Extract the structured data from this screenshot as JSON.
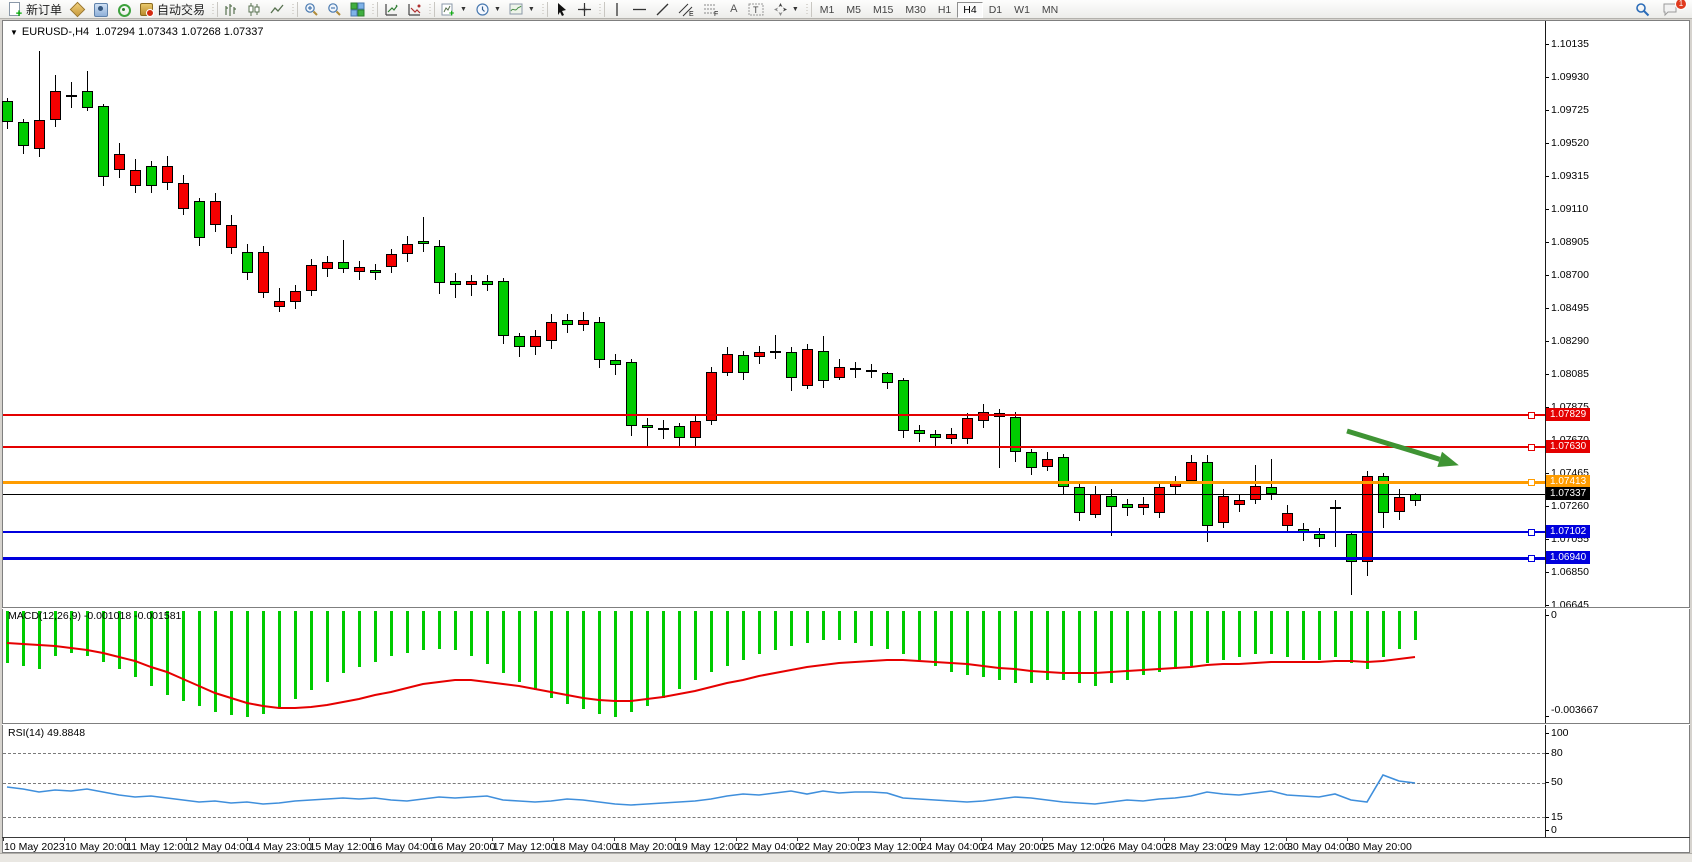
{
  "toolbar": {
    "new_order_label": "新订单",
    "autotrade_label": "自动交易",
    "timeframes": [
      "M1",
      "M5",
      "M15",
      "M30",
      "H1",
      "H4",
      "D1",
      "W1",
      "MN"
    ],
    "active_timeframe": "H4",
    "chat_badge": "1"
  },
  "header": {
    "symbol_timeframe": "EURUSD-,H4",
    "open": "1.07294",
    "high": "1.07343",
    "low": "1.07268",
    "close": "1.07337"
  },
  "chart_data": {
    "type": "candlestick",
    "symbol": "EURUSD-",
    "timeframe": "H4",
    "grid": false,
    "colors": {
      "bull": "#00cb00",
      "bear": "#f50000",
      "outline": "#000000",
      "macd_hist": "#00cb00",
      "macd_signal": "#e60000",
      "rsi_line": "#3f8fdc",
      "arrow": "#3f9434"
    },
    "price_axis_labels": [
      "1.10135",
      "1.09930",
      "1.09725",
      "1.09520",
      "1.09315",
      "1.09110",
      "1.08905",
      "1.08700",
      "1.08495",
      "1.08290",
      "1.08085",
      "1.07875",
      "1.07670",
      "1.07465",
      "1.07260",
      "1.07055",
      "1.06850",
      "1.06645"
    ],
    "time_axis_labels": [
      "10 May 2023",
      "10 May 20:00",
      "11 May 12:00",
      "12 May 04:00",
      "14 May 23:00",
      "15 May 12:00",
      "16 May 04:00",
      "16 May 20:00",
      "17 May 12:00",
      "18 May 04:00",
      "18 May 20:00",
      "19 May 12:00",
      "22 May 04:00",
      "22 May 20:00",
      "23 May 12:00",
      "24 May 04:00",
      "24 May 20:00",
      "25 May 12:00",
      "26 May 04:00",
      "28 May 23:00",
      "29 May 12:00",
      "30 May 04:00",
      "30 May 20:00"
    ],
    "hlines": [
      {
        "price": 1.07829,
        "label": "1.07829",
        "color": "#e40000",
        "width": 2,
        "handle": true
      },
      {
        "price": 1.0763,
        "label": "1.07630",
        "color": "#e40000",
        "width": 2,
        "handle": true
      },
      {
        "price": 1.07413,
        "label": "1.07413",
        "color": "#ff9c00",
        "width": 3,
        "handle": true
      },
      {
        "price": 1.07337,
        "label": "1.07337",
        "color": "#000000",
        "width": 1,
        "handle": false
      },
      {
        "price": 1.07102,
        "label": "1.07102",
        "color": "#0000dd",
        "width": 2,
        "handle": true
      },
      {
        "price": 1.0694,
        "label": "1.06940",
        "color": "#0000dd",
        "width": 3,
        "handle": true
      }
    ],
    "arrow_annotation": {
      "from": [
        1347,
        431
      ],
      "to": [
        1455,
        464
      ]
    },
    "candles": [
      [
        1.0965,
        1.098,
        1.0961,
        1.0978
      ],
      [
        1.095,
        1.0967,
        1.0945,
        1.0965
      ],
      [
        1.0966,
        1.1009,
        1.0943,
        1.0948
      ],
      [
        1.0984,
        1.0994,
        1.0962,
        1.0966
      ],
      [
        1.0981,
        1.099,
        1.0974,
        1.0982
      ],
      [
        1.0974,
        1.0997,
        1.0972,
        1.0984
      ],
      [
        1.0931,
        1.0976,
        1.0925,
        1.0975
      ],
      [
        1.0945,
        1.0952,
        1.093,
        1.0935
      ],
      [
        1.0935,
        1.0942,
        1.0921,
        1.0925
      ],
      [
        1.0925,
        1.0941,
        1.0921,
        1.0938
      ],
      [
        1.0938,
        1.0944,
        1.0923,
        1.0927
      ],
      [
        1.0927,
        1.0932,
        1.0907,
        1.0911
      ],
      [
        1.0893,
        1.0918,
        1.0888,
        1.0916
      ],
      [
        1.0916,
        1.0921,
        1.0897,
        1.0901
      ],
      [
        1.0901,
        1.0907,
        1.0883,
        1.0887
      ],
      [
        1.0871,
        1.0889,
        1.0867,
        1.0884
      ],
      [
        1.0884,
        1.0888,
        1.0856,
        1.0859
      ],
      [
        1.0854,
        1.0862,
        1.0847,
        1.085
      ],
      [
        1.086,
        1.0864,
        1.0849,
        1.0853
      ],
      [
        1.0876,
        1.088,
        1.0857,
        1.086
      ],
      [
        1.0878,
        1.0882,
        1.0869,
        1.0874
      ],
      [
        1.0874,
        1.0892,
        1.0871,
        1.0878
      ],
      [
        1.0875,
        1.0879,
        1.0867,
        1.0872
      ],
      [
        1.0871,
        1.0877,
        1.0867,
        1.0873
      ],
      [
        1.0883,
        1.0886,
        1.0871,
        1.0875
      ],
      [
        1.0889,
        1.0894,
        1.0878,
        1.0883
      ],
      [
        1.0889,
        1.0906,
        1.0884,
        1.0891
      ],
      [
        1.0865,
        1.0892,
        1.0858,
        1.0888
      ],
      [
        1.0864,
        1.0871,
        1.0856,
        1.0866
      ],
      [
        1.0866,
        1.087,
        1.0857,
        1.0864
      ],
      [
        1.0864,
        1.087,
        1.086,
        1.0866
      ],
      [
        1.0832,
        1.0868,
        1.0827,
        1.0866
      ],
      [
        1.0825,
        1.0834,
        1.0819,
        1.0832
      ],
      [
        1.0832,
        1.0836,
        1.082,
        1.0825
      ],
      [
        1.0841,
        1.0846,
        1.0824,
        1.0829
      ],
      [
        1.0839,
        1.0846,
        1.0834,
        1.0842
      ],
      [
        1.0842,
        1.0847,
        1.0835,
        1.0839
      ],
      [
        1.0817,
        1.0844,
        1.0812,
        1.0841
      ],
      [
        1.0814,
        1.0821,
        1.0808,
        1.0817
      ],
      [
        1.0776,
        1.0818,
        1.077,
        1.0816
      ],
      [
        1.0775,
        1.0781,
        1.0764,
        1.0777
      ],
      [
        1.0774,
        1.078,
        1.0768,
        1.0775
      ],
      [
        1.0769,
        1.0778,
        1.0764,
        1.0776
      ],
      [
        1.0779,
        1.0783,
        1.0763,
        1.0769
      ],
      [
        1.081,
        1.0813,
        1.0777,
        1.0779
      ],
      [
        1.0821,
        1.0825,
        1.0807,
        1.0809
      ],
      [
        1.0809,
        1.0823,
        1.0805,
        1.082
      ],
      [
        1.0822,
        1.0826,
        1.0815,
        1.0819
      ],
      [
        1.0822,
        1.0833,
        1.0818,
        1.0823
      ],
      [
        1.0806,
        1.0825,
        1.0798,
        1.0822
      ],
      [
        1.0824,
        1.0827,
        1.0799,
        1.0801
      ],
      [
        1.0804,
        1.0832,
        1.08,
        1.0823
      ],
      [
        1.0813,
        1.0818,
        1.0805,
        1.0806
      ],
      [
        1.0811,
        1.0816,
        1.0806,
        1.0812
      ],
      [
        1.081,
        1.0815,
        1.0806,
        1.0811
      ],
      [
        1.0803,
        1.081,
        1.0799,
        1.0809
      ],
      [
        1.0773,
        1.0806,
        1.0769,
        1.0805
      ],
      [
        1.0771,
        1.0777,
        1.0766,
        1.0774
      ],
      [
        1.0769,
        1.0774,
        1.0763,
        1.0771
      ],
      [
        1.0771,
        1.0775,
        1.0765,
        1.0768
      ],
      [
        1.0781,
        1.0784,
        1.0765,
        1.0768
      ],
      [
        1.0785,
        1.079,
        1.0775,
        1.0779
      ],
      [
        1.0782,
        1.0787,
        1.075,
        1.0784
      ],
      [
        1.076,
        1.0785,
        1.0754,
        1.0782
      ],
      [
        1.075,
        1.0762,
        1.0746,
        1.076
      ],
      [
        1.0756,
        1.076,
        1.0748,
        1.0751
      ],
      [
        1.0738,
        1.0759,
        1.0734,
        1.0757
      ],
      [
        1.0722,
        1.0741,
        1.0717,
        1.0738
      ],
      [
        1.0734,
        1.0739,
        1.0719,
        1.0721
      ],
      [
        1.0726,
        1.0737,
        1.0708,
        1.0733
      ],
      [
        1.0725,
        1.0731,
        1.072,
        1.0728
      ],
      [
        1.0728,
        1.0732,
        1.0721,
        1.0725
      ],
      [
        1.0738,
        1.0742,
        1.0719,
        1.0722
      ],
      [
        1.0741,
        1.0745,
        1.0734,
        1.0738
      ],
      [
        1.0754,
        1.0758,
        1.074,
        1.0742
      ],
      [
        1.0714,
        1.0758,
        1.0704,
        1.0754
      ],
      [
        1.0733,
        1.0737,
        1.0713,
        1.0716
      ],
      [
        1.073,
        1.0734,
        1.0723,
        1.0727
      ],
      [
        1.0739,
        1.0752,
        1.0728,
        1.073
      ],
      [
        1.0734,
        1.0756,
        1.073,
        1.0738
      ],
      [
        1.0722,
        1.0727,
        1.0711,
        1.0714
      ],
      [
        1.071,
        1.0716,
        1.0705,
        1.0712
      ],
      [
        1.0706,
        1.0713,
        1.0701,
        1.0709
      ],
      [
        1.0726,
        1.073,
        1.0701,
        1.0725
      ],
      [
        1.0692,
        1.0711,
        1.0671,
        1.0709
      ],
      [
        1.0745,
        1.0748,
        1.0683,
        1.0692
      ],
      [
        1.0722,
        1.0747,
        1.0713,
        1.0745
      ],
      [
        1.0732,
        1.0737,
        1.0718,
        1.0723
      ],
      [
        1.07294,
        1.07343,
        1.07268,
        1.07337
      ]
    ],
    "indicators": [
      {
        "type": "bar",
        "name": "MACD(12,26,9)",
        "values_text": "-0.001018 -0.001581",
        "axis": [
          "0",
          "-0.003667"
        ],
        "range": [
          -0.003667,
          0
        ],
        "histogram": [
          -0.0018,
          -0.0019,
          -0.002,
          -0.00155,
          -0.00145,
          -0.00155,
          -0.00175,
          -0.002,
          -0.0023,
          -0.0026,
          -0.0029,
          -0.0031,
          -0.0033,
          -0.0035,
          -0.0036,
          -0.00365,
          -0.00355,
          -0.00335,
          -0.00305,
          -0.00275,
          -0.00245,
          -0.00215,
          -0.00195,
          -0.00175,
          -0.00155,
          -0.00145,
          -0.00135,
          -0.0013,
          -0.00135,
          -0.00155,
          -0.00185,
          -0.00215,
          -0.00245,
          -0.00275,
          -0.003,
          -0.0032,
          -0.0034,
          -0.00355,
          -0.00365,
          -0.0035,
          -0.0033,
          -0.003,
          -0.0027,
          -0.0024,
          -0.0021,
          -0.0019,
          -0.0017,
          -0.0015,
          -0.00135,
          -0.0012,
          -0.0011,
          -0.001,
          -0.001,
          -0.0011,
          -0.0012,
          -0.0013,
          -0.0015,
          -0.0017,
          -0.0019,
          -0.0021,
          -0.0022,
          -0.0023,
          -0.0024,
          -0.0025,
          -0.0025,
          -0.0024,
          -0.0024,
          -0.0025,
          -0.0026,
          -0.0025,
          -0.0024,
          -0.0022,
          -0.0021,
          -0.002,
          -0.0019,
          -0.0018,
          -0.0017,
          -0.0016,
          -0.0015,
          -0.0015,
          -0.0016,
          -0.0017,
          -0.0017,
          -0.0016,
          -0.0018,
          -0.002,
          -0.0016,
          -0.0013,
          -0.001018
        ],
        "signal": [
          -0.0011,
          -0.00113,
          -0.00117,
          -0.00122,
          -0.00128,
          -0.00136,
          -0.00146,
          -0.00158,
          -0.00174,
          -0.00192,
          -0.00212,
          -0.00234,
          -0.00258,
          -0.00282,
          -0.00302,
          -0.00318,
          -0.0033,
          -0.00336,
          -0.00336,
          -0.00332,
          -0.00325,
          -0.00315,
          -0.00304,
          -0.00292,
          -0.00279,
          -0.00266,
          -0.00254,
          -0.00245,
          -0.0024,
          -0.0024,
          -0.00244,
          -0.00251,
          -0.0026,
          -0.0027,
          -0.00281,
          -0.00292,
          -0.00301,
          -0.00308,
          -0.00312,
          -0.00311,
          -0.00306,
          -0.00298,
          -0.00288,
          -0.00276,
          -0.00263,
          -0.0025,
          -0.00237,
          -0.00225,
          -0.00214,
          -0.00204,
          -0.00195,
          -0.00187,
          -0.0018,
          -0.00175,
          -0.00172,
          -0.0017,
          -0.0017,
          -0.00172,
          -0.00175,
          -0.00179,
          -0.00184,
          -0.0019,
          -0.00196,
          -0.00202,
          -0.00208,
          -0.00212,
          -0.00215,
          -0.00216,
          -0.00215,
          -0.00212,
          -0.00208,
          -0.00204,
          -0.002,
          -0.00196,
          -0.00192,
          -0.00188,
          -0.00185,
          -0.00182,
          -0.0018,
          -0.00178,
          -0.00177,
          -0.00176,
          -0.00175,
          -0.00174,
          -0.00174,
          -0.00175,
          -0.00172,
          -0.00166,
          -0.001581
        ]
      },
      {
        "type": "line",
        "name": "RSI(14)",
        "value_text": "49.8848",
        "axis": [
          "100",
          "80",
          "50",
          "15",
          "0"
        ],
        "levels": [
          80,
          50,
          15
        ],
        "range": [
          0,
          100
        ],
        "series": [
          45,
          43,
          40,
          42,
          41,
          43,
          40,
          37,
          35,
          36,
          34,
          32,
          30,
          31,
          29,
          30,
          28,
          29,
          31,
          32,
          33,
          34,
          33,
          34,
          32,
          31,
          33,
          35,
          34,
          35,
          36,
          32,
          31,
          30,
          31,
          33,
          32,
          30,
          28,
          27,
          28,
          29,
          30,
          31,
          33,
          36,
          38,
          37,
          39,
          41,
          38,
          41,
          39,
          40,
          40,
          39,
          34,
          33,
          32,
          31,
          30,
          31,
          33,
          35,
          34,
          32,
          30,
          29,
          28,
          30,
          32,
          31,
          33,
          34,
          36,
          40,
          38,
          37,
          39,
          41,
          37,
          36,
          35,
          38,
          32,
          30,
          58,
          52,
          49.88
        ]
      }
    ]
  }
}
